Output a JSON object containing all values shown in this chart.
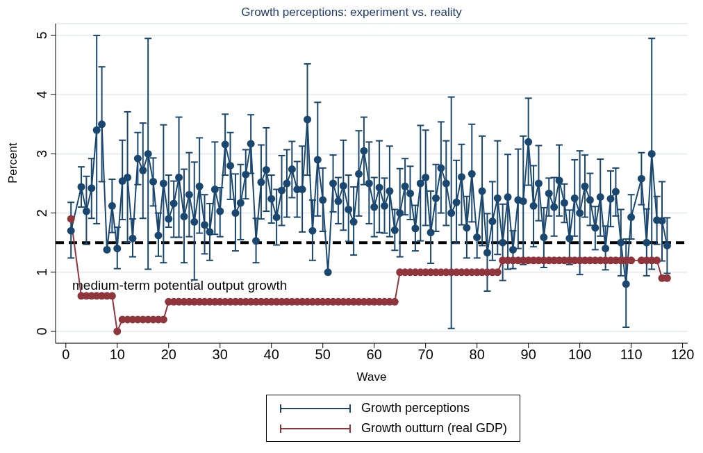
{
  "chart_data": {
    "type": "line",
    "title": "Growth perceptions: experiment vs. reality",
    "xlabel": "Wave",
    "ylabel": "Percent",
    "x": [
      1,
      3,
      4,
      5,
      6,
      7,
      8,
      9,
      10,
      11,
      12,
      13,
      14,
      15,
      16,
      17,
      18,
      19,
      20,
      21,
      22,
      23,
      24,
      25,
      26,
      27,
      28,
      29,
      30,
      31,
      32,
      33,
      34,
      35,
      36,
      37,
      38,
      39,
      40,
      41,
      42,
      43,
      44,
      45,
      46,
      47,
      48,
      49,
      50,
      51,
      52,
      53,
      54,
      55,
      56,
      57,
      58,
      59,
      60,
      61,
      62,
      63,
      64,
      65,
      66,
      67,
      68,
      69,
      70,
      71,
      72,
      73,
      74,
      75,
      76,
      77,
      78,
      79,
      80,
      81,
      82,
      83,
      84,
      85,
      86,
      87,
      88,
      89,
      90,
      91,
      92,
      93,
      94,
      95,
      96,
      97,
      98,
      99,
      100,
      101,
      102,
      103,
      104,
      105,
      106,
      107,
      108,
      109,
      110,
      112,
      113,
      114,
      115,
      116,
      117
    ],
    "series": [
      {
        "name": "Growth perceptions",
        "color": "#1a476f",
        "values": [
          1.7,
          2.44,
          2.03,
          2.42,
          3.4,
          3.5,
          1.38,
          2.12,
          1.4,
          2.54,
          2.6,
          1.57,
          2.92,
          2.72,
          3.0,
          2.53,
          1.62,
          2.5,
          1.9,
          2.16,
          2.6,
          1.94,
          2.31,
          1.85,
          2.45,
          1.8,
          1.68,
          2.4,
          2.03,
          3.16,
          2.8,
          2.0,
          2.17,
          2.65,
          3.17,
          1.53,
          2.52,
          2.73,
          2.24,
          1.93,
          2.38,
          2.5,
          2.74,
          2.4,
          2.4,
          3.58,
          1.7,
          2.9,
          2.22,
          1.0,
          2.5,
          2.2,
          2.46,
          2.06,
          1.85,
          2.66,
          3.05,
          2.5,
          2.1,
          2.43,
          2.12,
          2.37,
          1.71,
          2.0,
          2.45,
          2.33,
          1.74,
          2.5,
          2.6,
          1.67,
          2.25,
          2.76,
          2.5,
          2.0,
          2.18,
          2.61,
          1.75,
          2.66,
          1.59,
          2.37,
          1.33,
          1.86,
          2.25,
          1.5,
          2.27,
          1.38,
          2.22,
          2.2,
          3.2,
          2.12,
          2.5,
          1.59,
          2.33,
          2.1,
          2.55,
          2.17,
          1.57,
          2.25,
          2.0,
          2.45,
          2.22,
          1.75,
          2.27,
          1.4,
          2.24,
          2.36,
          1.5,
          0.8,
          1.93,
          2.58,
          1.5,
          3.0,
          1.88,
          1.87,
          1.45
        ],
        "errors": [
          [
            1.24,
            2.18
          ],
          [
            2.1,
            2.78
          ],
          [
            1.47,
            2.62
          ],
          [
            1.91,
            2.92
          ],
          [
            1.82,
            5.0
          ],
          [
            2.53,
            4.47
          ],
          null,
          [
            1.67,
            2.57
          ],
          [
            1.06,
            1.76
          ],
          [
            1.89,
            3.23
          ],
          [
            1.5,
            3.71
          ],
          [
            1.26,
            1.9
          ],
          [
            2.48,
            3.36
          ],
          [
            1.91,
            3.52
          ],
          [
            1.05,
            4.95
          ],
          [
            2.12,
            2.93
          ],
          [
            1.27,
            2.0
          ],
          [
            1.16,
            3.49
          ],
          [
            1.76,
            2.64
          ],
          [
            1.59,
            2.54
          ],
          [
            1.59,
            3.62
          ],
          [
            1.16,
            2.74
          ],
          [
            1.6,
            3.02
          ],
          [
            0.87,
            2.86
          ],
          [
            1.66,
            3.27
          ],
          [
            1.31,
            2.31
          ],
          [
            1.2,
            2.16
          ],
          [
            1.64,
            3.2
          ],
          [
            1.6,
            2.43
          ],
          [
            2.64,
            3.67
          ],
          [
            2.23,
            3.36
          ],
          [
            1.36,
            2.66
          ],
          [
            1.55,
            2.82
          ],
          [
            2.24,
            3.07
          ],
          [
            2.67,
            3.66
          ],
          [
            1.16,
            1.91
          ],
          [
            1.9,
            3.15
          ],
          [
            2.03,
            3.44
          ],
          [
            1.83,
            2.64
          ],
          [
            1.46,
            2.4
          ],
          [
            1.79,
            2.97
          ],
          [
            1.93,
            3.07
          ],
          [
            2.26,
            3.21
          ],
          [
            1.93,
            2.87
          ],
          [
            1.68,
            3.13
          ],
          [
            2.64,
            4.52
          ],
          [
            1.2,
            2.22
          ],
          [
            1.95,
            3.87
          ],
          [
            1.69,
            2.76
          ],
          null,
          [
            2.02,
            2.98
          ],
          [
            1.82,
            2.6
          ],
          [
            1.71,
            3.23
          ],
          [
            1.52,
            2.64
          ],
          [
            1.29,
            2.44
          ],
          [
            1.95,
            3.39
          ],
          [
            2.48,
            3.62
          ],
          [
            1.82,
            3.2
          ],
          [
            1.6,
            2.6
          ],
          [
            1.67,
            3.22
          ],
          [
            1.66,
            2.59
          ],
          [
            1.6,
            3.13
          ],
          [
            1.37,
            2.06
          ],
          [
            1.26,
            2.75
          ],
          [
            1.97,
            2.92
          ],
          [
            1.89,
            2.79
          ],
          [
            1.36,
            2.13
          ],
          [
            1.53,
            3.48
          ],
          [
            1.79,
            3.4
          ],
          [
            1.15,
            2.37
          ],
          [
            1.69,
            2.82
          ],
          [
            2.0,
            3.54
          ],
          [
            1.79,
            3.22
          ],
          [
            0.05,
            3.96
          ],
          [
            1.49,
            2.89
          ],
          [
            1.8,
            3.16
          ],
          [
            1.24,
            2.28
          ],
          [
            1.85,
            3.5
          ],
          [
            1.24,
            1.6
          ],
          [
            1.45,
            3.3
          ],
          [
            0.68,
            1.99
          ],
          [
            1.2,
            2.53
          ],
          [
            1.3,
            3.22
          ],
          [
            0.86,
            2.15
          ],
          [
            1.05,
            2.99
          ],
          [
            1.06,
            1.7
          ],
          [
            1.4,
            3.08
          ],
          [
            1.13,
            3.3
          ],
          [
            2.47,
            3.94
          ],
          [
            1.43,
            2.8
          ],
          [
            1.87,
            3.14
          ],
          [
            1.08,
            2.09
          ],
          [
            1.95,
            2.59
          ],
          [
            1.61,
            2.6
          ],
          [
            1.95,
            3.15
          ],
          [
            1.84,
            2.49
          ],
          [
            1.13,
            2.05
          ],
          [
            1.61,
            2.9
          ],
          [
            0.96,
            3.05
          ],
          [
            1.93,
            2.98
          ],
          [
            1.79,
            2.67
          ],
          [
            1.38,
            2.11
          ],
          [
            1.61,
            2.91
          ],
          [
            1.04,
            1.78
          ],
          [
            1.77,
            2.71
          ],
          [
            1.95,
            2.76
          ],
          [
            0.94,
            2.06
          ],
          [
            0.07,
            1.56
          ],
          [
            1.56,
            2.31
          ],
          [
            2.14,
            3.02
          ],
          [
            0.94,
            2.07
          ],
          [
            1.05,
            4.95
          ],
          [
            1.47,
            2.28
          ],
          [
            1.19,
            2.53
          ],
          [
            0.98,
            1.92
          ]
        ]
      },
      {
        "name": "Growth outturn (real GDP)",
        "color": "#90353b",
        "values": [
          1.9,
          0.6,
          0.6,
          0.6,
          0.6,
          0.6,
          0.6,
          0.6,
          0,
          0.2,
          0.2,
          0.2,
          0.2,
          0.2,
          0.2,
          0.2,
          0.2,
          0.2,
          0.5,
          0.5,
          0.5,
          0.5,
          0.5,
          0.5,
          0.5,
          0.5,
          0.5,
          0.5,
          0.5,
          0.5,
          0.5,
          0.5,
          0.5,
          0.5,
          0.5,
          0.5,
          0.5,
          0.5,
          0.5,
          0.5,
          0.5,
          0.5,
          0.5,
          0.5,
          0.5,
          0.5,
          0.5,
          0.5,
          0.5,
          0.5,
          0.5,
          0.5,
          0.5,
          0.5,
          0.5,
          0.5,
          0.5,
          0.5,
          0.5,
          0.5,
          0.5,
          0.5,
          0.5,
          1.0,
          1.0,
          1.0,
          1.0,
          1.0,
          1.0,
          1.0,
          1.0,
          1.0,
          1.0,
          1.0,
          1.0,
          1.0,
          1.0,
          1.0,
          1.0,
          1.0,
          1.0,
          1.0,
          1.0,
          1.2,
          1.2,
          1.2,
          1.2,
          1.2,
          1.2,
          1.2,
          1.2,
          1.2,
          1.2,
          1.2,
          1.2,
          1.2,
          1.2,
          1.2,
          1.2,
          1.2,
          1.2,
          1.2,
          1.2,
          1.2,
          1.2,
          1.2,
          1.2,
          1.2,
          1.2,
          1.2,
          1.2,
          1.2,
          1.2,
          0.9,
          0.9
        ]
      }
    ],
    "ref_lines": [
      {
        "axis": "y",
        "value": 1.5,
        "label": "medium-term potential output growth",
        "color": "#000000",
        "line_style": "dashed"
      }
    ],
    "xlim": [
      -2,
      121
    ],
    "xticks": [
      0,
      10,
      20,
      30,
      40,
      50,
      60,
      70,
      80,
      90,
      100,
      110,
      120
    ],
    "ylim": [
      -0.2,
      5.2
    ],
    "yticks": [
      0,
      1,
      2,
      3,
      4,
      5
    ],
    "grid": "y",
    "legend": "bottom",
    "marker": "circle",
    "line_style": "solid"
  }
}
